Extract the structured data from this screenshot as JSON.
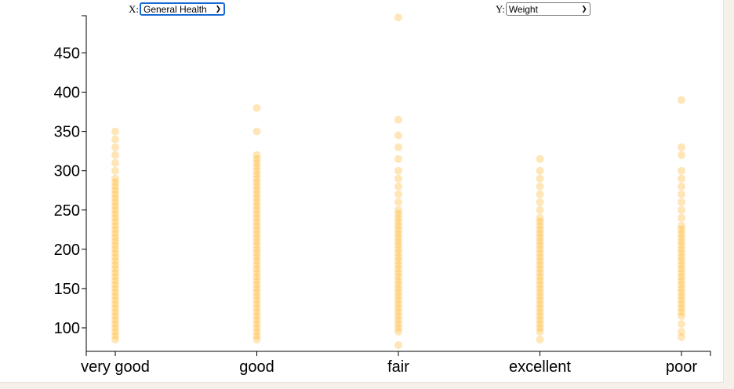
{
  "controls": {
    "x_label": "X:",
    "x_selected": "General Health",
    "y_label": "Y:",
    "y_selected": "Weight"
  },
  "colors": {
    "point": "#ffa500",
    "axis": "#000000"
  },
  "chart_data": {
    "type": "scatter",
    "title": "",
    "xlabel": "",
    "ylabel": "",
    "categories": [
      "very good",
      "good",
      "fair",
      "excellent",
      "poor"
    ],
    "y_ticks": [
      100,
      150,
      200,
      250,
      300,
      350,
      400,
      450
    ],
    "ylim": [
      70,
      500
    ],
    "grid": false,
    "series": [
      {
        "values_by_category": [
          [
            85,
            90,
            95,
            100,
            105,
            110,
            115,
            120,
            125,
            130,
            135,
            140,
            145,
            150,
            155,
            160,
            165,
            170,
            175,
            180,
            185,
            190,
            195,
            200,
            205,
            210,
            215,
            220,
            225,
            230,
            235,
            240,
            245,
            250,
            255,
            260,
            265,
            270,
            275,
            280,
            285,
            290,
            300,
            310,
            320,
            330,
            340,
            350
          ],
          [
            85,
            90,
            95,
            100,
            105,
            110,
            115,
            120,
            125,
            130,
            135,
            140,
            145,
            150,
            155,
            160,
            165,
            170,
            175,
            180,
            185,
            190,
            195,
            200,
            205,
            210,
            215,
            220,
            225,
            230,
            235,
            240,
            245,
            250,
            255,
            260,
            265,
            270,
            275,
            280,
            285,
            290,
            295,
            300,
            305,
            310,
            315,
            320,
            350,
            380
          ],
          [
            78,
            95,
            100,
            105,
            110,
            115,
            120,
            125,
            130,
            135,
            140,
            145,
            150,
            155,
            160,
            165,
            170,
            175,
            180,
            185,
            190,
            195,
            200,
            205,
            210,
            215,
            220,
            225,
            230,
            235,
            240,
            245,
            250,
            260,
            270,
            280,
            290,
            300,
            315,
            330,
            345,
            365,
            495
          ],
          [
            85,
            95,
            100,
            105,
            110,
            115,
            120,
            125,
            130,
            135,
            140,
            145,
            150,
            155,
            160,
            165,
            170,
            175,
            180,
            185,
            190,
            195,
            200,
            205,
            210,
            215,
            220,
            225,
            230,
            235,
            240,
            250,
            260,
            270,
            280,
            290,
            300,
            315
          ],
          [
            88,
            95,
            105,
            115,
            120,
            125,
            130,
            135,
            140,
            145,
            150,
            155,
            160,
            165,
            170,
            175,
            180,
            185,
            190,
            195,
            200,
            205,
            210,
            215,
            220,
            225,
            230,
            240,
            250,
            260,
            270,
            280,
            290,
            300,
            320,
            330,
            390
          ]
        ]
      }
    ]
  }
}
